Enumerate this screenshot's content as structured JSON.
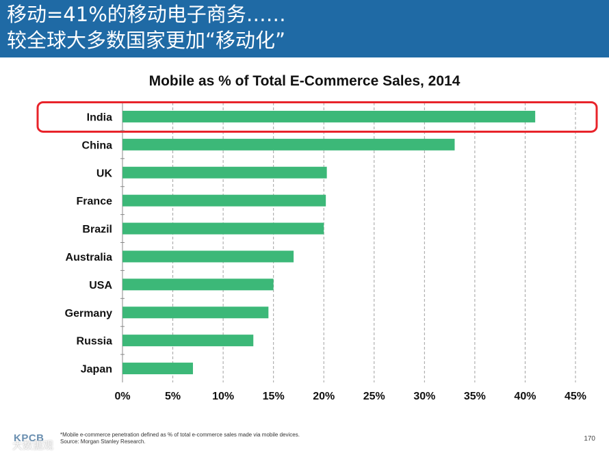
{
  "header": {
    "line1": "移动=41%的移动电子商务……",
    "line2": "较全球大多数国家更加“移动化”"
  },
  "chart_data": {
    "type": "bar",
    "orientation": "horizontal",
    "title": "Mobile as % of Total E-Commerce Sales, 2014",
    "categories": [
      "India",
      "China",
      "UK",
      "France",
      "Brazil",
      "Australia",
      "USA",
      "Germany",
      "Russia",
      "Japan"
    ],
    "values": [
      41,
      33,
      20.3,
      20.2,
      20,
      17,
      15,
      14.5,
      13,
      7
    ],
    "unit": "%",
    "xlim": [
      0,
      45
    ],
    "xticks": [
      "0%",
      "5%",
      "10%",
      "15%",
      "20%",
      "25%",
      "30%",
      "35%",
      "40%",
      "45%"
    ],
    "grid": "vertical dashed",
    "highlighted_category": "India",
    "colors": {
      "bar": "#3cb878",
      "highlight": "#e8232a",
      "grid": "#a0a0a0"
    }
  },
  "footnote": {
    "line1": "*Mobile e-commerce penetration defined as % of total e-commerce sales made via mobile devices.",
    "line2": "Source: Morgan Stanley Research."
  },
  "page_number": "170",
  "logo": "KPCB",
  "watermark": "大数据观"
}
